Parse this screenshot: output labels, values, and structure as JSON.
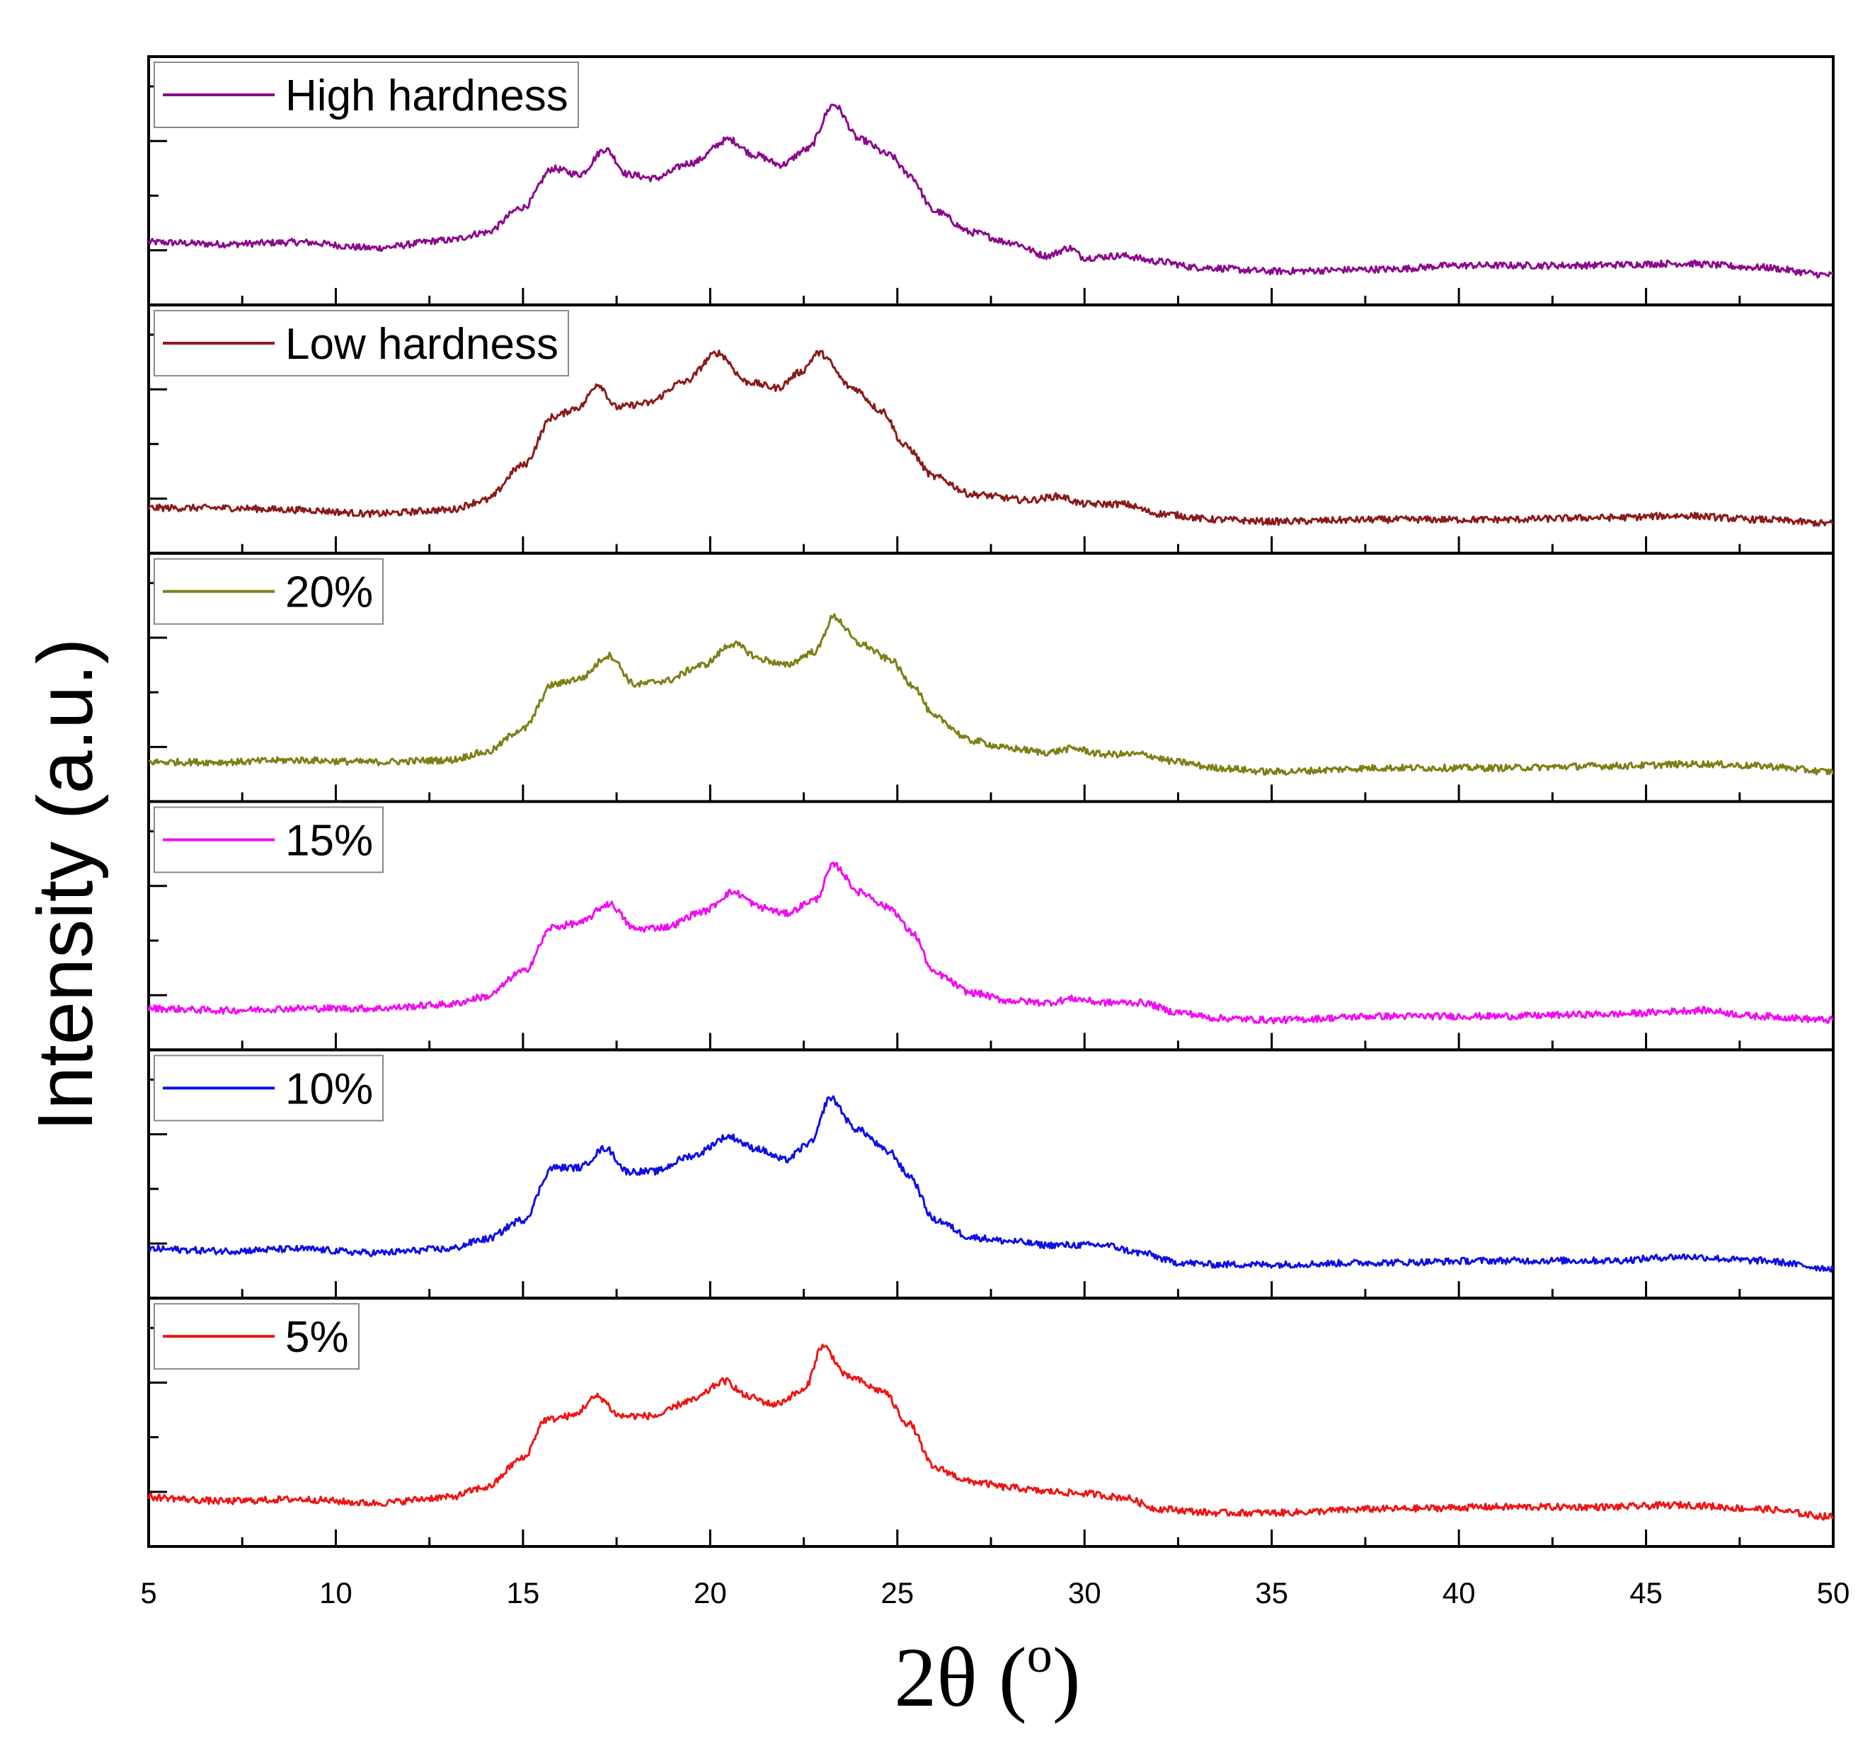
{
  "chart_data": {
    "type": "line",
    "title": "",
    "xlabel": "2θ (o)",
    "xlabel_main": "2θ (",
    "xlabel_sup": "o",
    "xlabel_close": ")",
    "ylabel": "Intensity (a.u.)",
    "xlim": [
      5,
      50
    ],
    "x_ticks": [
      5,
      10,
      15,
      20,
      25,
      30,
      35,
      40,
      45,
      50
    ],
    "x_tick_labels": [
      "5",
      "10",
      "15",
      "20",
      "25",
      "30",
      "35",
      "40",
      "45",
      "50"
    ],
    "layout": "stacked panels, shared x-axis",
    "legend_position": "top-left of each panel",
    "series": [
      {
        "name": "High hardness",
        "color": "#8B0A8B",
        "x": [
          5,
          7,
          9,
          11,
          13,
          14,
          15,
          15.8,
          16.5,
          17.2,
          17.8,
          18.5,
          19.5,
          20.5,
          21.2,
          21.9,
          22.6,
          23.3,
          24.0,
          24.8,
          25.3,
          26.0,
          27.0,
          28.0,
          29.0,
          29.6,
          30.0,
          31.0,
          32.0,
          33.0,
          35.0,
          38.0,
          40.0,
          43.0,
          46.0,
          48.0,
          50.0
        ],
        "values": [
          0.17,
          0.16,
          0.17,
          0.14,
          0.18,
          0.22,
          0.35,
          0.55,
          0.52,
          0.65,
          0.52,
          0.5,
          0.58,
          0.7,
          0.62,
          0.57,
          0.65,
          0.88,
          0.7,
          0.62,
          0.52,
          0.33,
          0.22,
          0.17,
          0.1,
          0.14,
          0.09,
          0.1,
          0.07,
          0.04,
          0.02,
          0.03,
          0.05,
          0.05,
          0.06,
          0.04,
          0.0
        ]
      },
      {
        "name": "Low hardness",
        "color": "#8B1A1A",
        "x": [
          5,
          7,
          9,
          11,
          13,
          14,
          15,
          15.8,
          16.5,
          17.0,
          17.5,
          18.3,
          19.3,
          20.2,
          21.0,
          21.8,
          22.4,
          22.9,
          23.8,
          24.6,
          25.2,
          26.0,
          27.0,
          28.5,
          29.3,
          30.0,
          31.0,
          32.0,
          33.5,
          35.0,
          38.0,
          41.0,
          44.0,
          46.0,
          48.0,
          50.0
        ],
        "values": [
          0.08,
          0.08,
          0.07,
          0.05,
          0.07,
          0.12,
          0.3,
          0.55,
          0.6,
          0.72,
          0.6,
          0.62,
          0.73,
          0.88,
          0.73,
          0.7,
          0.78,
          0.88,
          0.7,
          0.58,
          0.4,
          0.24,
          0.15,
          0.12,
          0.14,
          0.1,
          0.1,
          0.05,
          0.02,
          0.01,
          0.02,
          0.02,
          0.03,
          0.04,
          0.02,
          0.0
        ]
      },
      {
        "name": "20%",
        "color": "#7E7E16",
        "x": [
          5,
          7,
          9,
          11,
          13,
          14,
          15,
          15.8,
          16.5,
          17.3,
          18.0,
          18.8,
          19.8,
          20.6,
          21.4,
          22.0,
          22.8,
          23.3,
          24.0,
          24.8,
          25.4,
          26.0,
          27.0,
          28.0,
          29.0,
          29.7,
          30.5,
          31.5,
          32.5,
          33.5,
          35.0,
          38.0,
          41.0,
          44.0,
          46.5,
          48.0,
          50.0
        ],
        "values": [
          0.05,
          0.05,
          0.06,
          0.05,
          0.06,
          0.1,
          0.22,
          0.45,
          0.48,
          0.6,
          0.45,
          0.47,
          0.55,
          0.66,
          0.58,
          0.55,
          0.62,
          0.8,
          0.66,
          0.58,
          0.45,
          0.28,
          0.16,
          0.12,
          0.1,
          0.12,
          0.09,
          0.09,
          0.05,
          0.02,
          0.0,
          0.02,
          0.02,
          0.03,
          0.04,
          0.03,
          0.0
        ]
      },
      {
        "name": "15%",
        "color": "#F20CF2",
        "x": [
          5,
          7,
          9,
          11,
          13,
          14,
          15,
          15.8,
          16.5,
          17.3,
          18.0,
          18.8,
          19.8,
          20.6,
          21.4,
          22.0,
          22.8,
          23.3,
          24.0,
          24.8,
          25.4,
          26.0,
          27.0,
          28.0,
          29.0,
          29.7,
          30.5,
          31.5,
          32.5,
          33.5,
          35.0,
          38.0,
          41.0,
          44.0,
          46.5,
          48.0,
          50.0
        ],
        "values": [
          0.06,
          0.05,
          0.06,
          0.06,
          0.08,
          0.12,
          0.25,
          0.48,
          0.5,
          0.6,
          0.47,
          0.48,
          0.56,
          0.66,
          0.58,
          0.55,
          0.62,
          0.8,
          0.66,
          0.58,
          0.45,
          0.24,
          0.14,
          0.1,
          0.09,
          0.11,
          0.09,
          0.09,
          0.04,
          0.01,
          0.0,
          0.02,
          0.02,
          0.03,
          0.05,
          0.02,
          0.0
        ]
      },
      {
        "name": "10%",
        "color": "#0E0EE6",
        "x": [
          5,
          7,
          9,
          11,
          13,
          14,
          15,
          15.8,
          16.5,
          17.2,
          17.8,
          18.5,
          19.5,
          20.5,
          21.2,
          22.0,
          22.7,
          23.2,
          23.9,
          24.8,
          25.3,
          26.0,
          27.0,
          28.0,
          29.0,
          30.5,
          31.5,
          32.5,
          33.5,
          35.0,
          38.0,
          41.0,
          44.0,
          46.0,
          48.0,
          50.0
        ],
        "values": [
          0.1,
          0.09,
          0.1,
          0.08,
          0.1,
          0.15,
          0.25,
          0.52,
          0.52,
          0.62,
          0.5,
          0.5,
          0.58,
          0.68,
          0.62,
          0.56,
          0.65,
          0.88,
          0.72,
          0.6,
          0.48,
          0.25,
          0.16,
          0.14,
          0.12,
          0.12,
          0.08,
          0.03,
          0.02,
          0.02,
          0.03,
          0.04,
          0.04,
          0.06,
          0.04,
          0.0
        ]
      },
      {
        "name": "5%",
        "color": "#F01414",
        "x": [
          5,
          7,
          9,
          11,
          13,
          14,
          15,
          15.6,
          16.3,
          17.0,
          17.6,
          18.5,
          19.5,
          20.4,
          21.0,
          21.7,
          22.5,
          23.0,
          23.7,
          24.6,
          25.3,
          26.0,
          27.0,
          28.0,
          29.0,
          30.0,
          31.0,
          32.0,
          33.5,
          35.0,
          38.0,
          41.0,
          44.0,
          46.0,
          48.0,
          50.0
        ],
        "values": [
          0.1,
          0.08,
          0.09,
          0.07,
          0.1,
          0.15,
          0.3,
          0.5,
          0.52,
          0.62,
          0.52,
          0.52,
          0.6,
          0.7,
          0.62,
          0.58,
          0.65,
          0.88,
          0.72,
          0.65,
          0.48,
          0.25,
          0.18,
          0.15,
          0.13,
          0.12,
          0.1,
          0.04,
          0.02,
          0.02,
          0.04,
          0.05,
          0.05,
          0.06,
          0.04,
          0.0
        ]
      }
    ]
  }
}
